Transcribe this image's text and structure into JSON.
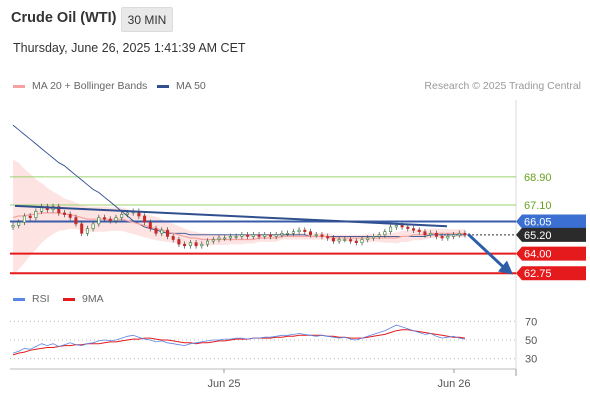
{
  "header": {
    "title": "Crude Oil (WTI)",
    "timeframe": "30 MIN",
    "timestamp": "Thursday, June 26, 2025 1:41:39 AM CET"
  },
  "legend_top": [
    {
      "label": "MA 20 + Bollinger Bands",
      "color": "#f4a3a0"
    },
    {
      "label": "MA 50",
      "color": "#2f4f8f"
    }
  ],
  "copyright": "Research © 2025 Trading Central",
  "legend_bottom": [
    {
      "label": "RSI",
      "color": "#5b86e5"
    },
    {
      "label": "9MA",
      "color": "#e41a1c"
    }
  ],
  "colors": {
    "resistance": "#9bd16a",
    "resistance_text": "#6aa121",
    "support": "#e41a1c",
    "pivot": "#3a5ba8",
    "current_price_bg": "#2b2b2b",
    "pivot_label_bg": "#3b6fd1",
    "ma20": "#f4a3a0",
    "band": "#fde3e2",
    "ma50": "#2f4f8f",
    "rsi": "#5b86e5",
    "rsi_ma": "#e41a1c"
  },
  "chart_data": [
    {
      "type": "candlestick",
      "title": "Crude Oil (WTI)",
      "timeframe": "30 MIN",
      "x_tick_labels": [
        "Jun 25",
        "Jun 26"
      ],
      "levels": [
        {
          "value": 68.9,
          "label": "68.90",
          "kind": "resistance"
        },
        {
          "value": 67.1,
          "label": "67.10",
          "kind": "resistance"
        },
        {
          "value": 66.05,
          "label": "66.05",
          "kind": "pivot"
        },
        {
          "value": 65.2,
          "label": "65.20",
          "kind": "current"
        },
        {
          "value": 64.0,
          "label": "64.00",
          "kind": "support"
        },
        {
          "value": 62.75,
          "label": "62.75",
          "kind": "support"
        }
      ],
      "ylim": [
        62.0,
        73.8
      ],
      "close": [
        65.8,
        66.0,
        66.4,
        66.3,
        66.7,
        67.0,
        66.8,
        67.0,
        66.6,
        66.5,
        66.3,
        65.9,
        65.3,
        65.6,
        65.9,
        66.3,
        66.2,
        66.1,
        66.3,
        66.5,
        66.6,
        66.7,
        66.4,
        66.0,
        65.6,
        65.3,
        65.5,
        65.1,
        64.9,
        64.6,
        64.5,
        64.7,
        64.5,
        64.6,
        64.8,
        64.9,
        65.0,
        65.0,
        65.1,
        65.1,
        65.2,
        65.1,
        65.2,
        65.1,
        65.2,
        65.1,
        65.2,
        65.3,
        65.3,
        65.4,
        65.5,
        65.4,
        65.2,
        65.2,
        65.1,
        65.0,
        64.8,
        64.9,
        64.9,
        64.8,
        64.7,
        64.9,
        65.0,
        65.1,
        65.2,
        65.4,
        65.7,
        65.8,
        65.7,
        65.6,
        65.5,
        65.4,
        65.2,
        65.3,
        65.1,
        65.0,
        65.1,
        65.2,
        65.3,
        65.2
      ],
      "ma20": [
        66.3,
        66.4,
        66.4,
        66.5,
        66.5,
        66.6,
        66.6,
        66.6,
        66.6,
        66.5,
        66.5,
        66.4,
        66.3,
        66.2,
        66.2,
        66.2,
        66.2,
        66.2,
        66.2,
        66.2,
        66.1,
        66.0,
        65.9,
        65.8,
        65.7,
        65.6,
        65.5,
        65.4,
        65.3,
        65.2,
        65.1,
        65.0,
        65.0,
        64.9,
        64.9,
        64.9,
        64.9,
        64.9,
        64.9,
        64.9,
        64.9,
        64.9,
        64.9,
        65.0,
        65.0,
        65.0,
        65.0,
        65.1,
        65.1,
        65.1,
        65.1,
        65.1,
        65.1,
        65.1,
        65.1,
        65.1,
        65.0,
        65.0,
        65.0,
        65.0,
        65.0,
        65.0,
        65.0,
        65.0,
        65.0,
        65.0,
        65.0,
        65.0,
        65.1,
        65.1,
        65.2,
        65.2,
        65.2,
        65.3,
        65.3,
        65.3,
        65.3,
        65.3,
        65.3,
        65.3
      ],
      "band_width": [
        7.4,
        6.8,
        6.0,
        5.2,
        4.5,
        3.8,
        3.2,
        2.7,
        2.3,
        2.0,
        1.8,
        1.7,
        1.6,
        1.6,
        1.6,
        1.6,
        1.6,
        1.5,
        1.5,
        1.5,
        1.5,
        1.5,
        1.5,
        1.5,
        1.5,
        1.5,
        1.4,
        1.3,
        1.2,
        1.1,
        1.0,
        0.9,
        0.8,
        0.8,
        0.8,
        0.7,
        0.7,
        0.7,
        0.6,
        0.6,
        0.6,
        0.5,
        0.5,
        0.5,
        0.5,
        0.5,
        0.5,
        0.4,
        0.4,
        0.4,
        0.4,
        0.4,
        0.4,
        0.4,
        0.4,
        0.4,
        0.4,
        0.4,
        0.4,
        0.4,
        0.4,
        0.4,
        0.5,
        0.5,
        0.5,
        0.6,
        0.6,
        0.7,
        0.7,
        0.7,
        0.7,
        0.7,
        0.6,
        0.6,
        0.6,
        0.6,
        0.5,
        0.5,
        0.5,
        0.5
      ],
      "ma50": [
        72.2,
        71.9,
        71.6,
        71.3,
        71.0,
        70.7,
        70.4,
        70.1,
        69.8,
        69.6,
        69.3,
        69.0,
        68.7,
        68.4,
        68.1,
        67.9,
        67.6,
        67.3,
        67.0,
        66.7,
        66.4,
        66.1,
        65.9,
        65.7,
        65.6,
        65.5,
        65.4,
        65.3,
        65.3,
        65.3,
        65.3,
        65.2,
        65.2,
        65.2,
        65.2,
        65.2,
        65.2,
        65.2,
        65.2,
        65.2,
        65.2,
        65.2,
        65.2,
        65.2,
        65.2,
        65.2,
        65.2,
        65.2,
        65.2,
        65.2,
        65.2,
        65.2,
        65.1,
        65.1,
        65.1,
        65.1,
        65.1,
        65.1,
        65.1,
        65.1,
        65.1,
        65.1,
        65.1,
        65.1,
        65.1,
        65.1,
        65.1,
        65.1,
        65.1,
        65.1,
        65.1,
        65.1,
        65.1,
        65.2,
        65.2,
        65.2,
        65.2,
        65.2,
        65.2,
        65.2
      ]
    },
    {
      "type": "line",
      "series_names": [
        "RSI",
        "9MA"
      ],
      "y_tick_labels": [
        "70",
        "50",
        "30"
      ],
      "ylim": [
        20,
        80
      ],
      "rsi": [
        36,
        38,
        41,
        40,
        43,
        46,
        44,
        46,
        43,
        45,
        47,
        45,
        44,
        46,
        47,
        49,
        50,
        49,
        50,
        52,
        54,
        55,
        53,
        51,
        50,
        48,
        49,
        47,
        46,
        45,
        44,
        46,
        47,
        48,
        49,
        50,
        50,
        51,
        51,
        52,
        52,
        51,
        52,
        52,
        53,
        53,
        54,
        55,
        55,
        56,
        57,
        56,
        55,
        54,
        55,
        54,
        53,
        52,
        53,
        51,
        50,
        52,
        54,
        56,
        58,
        60,
        63,
        66,
        64,
        62,
        60,
        58,
        56,
        57,
        54,
        52,
        53,
        54,
        52,
        51
      ],
      "rsi_ma": [
        34,
        36,
        37,
        39,
        40,
        41,
        42,
        42,
        43,
        44,
        44,
        45,
        45,
        46,
        46,
        46,
        47,
        48,
        48,
        49,
        50,
        51,
        51,
        52,
        52,
        51,
        50,
        50,
        49,
        48,
        47,
        47,
        46,
        47,
        47,
        48,
        49,
        49,
        50,
        51,
        51,
        51,
        52,
        52,
        52,
        52,
        53,
        53,
        54,
        54,
        55,
        55,
        55,
        55,
        55,
        54,
        54,
        53,
        53,
        52,
        52,
        52,
        53,
        54,
        55,
        56,
        58,
        60,
        61,
        61,
        60,
        59,
        58,
        57,
        56,
        55,
        54,
        53,
        53,
        52
      ]
    }
  ]
}
